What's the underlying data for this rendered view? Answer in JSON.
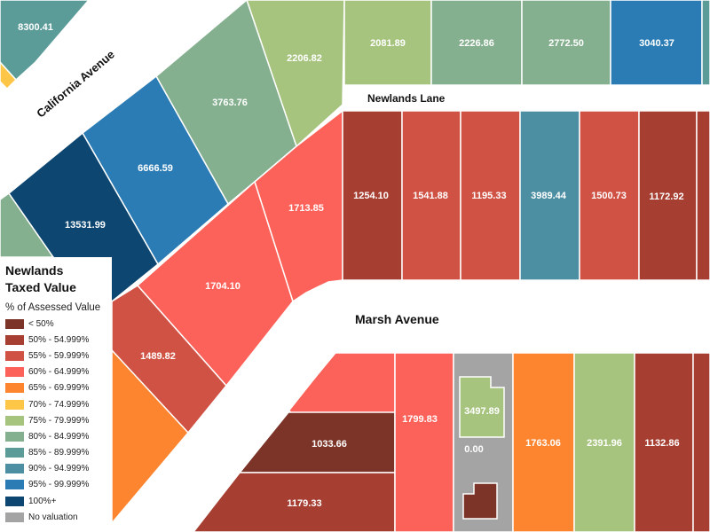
{
  "legend": {
    "title_line1": "Newlands",
    "title_line2": "Taxed Value",
    "subtitle": "% of Assessed Value",
    "items": [
      {
        "label": "< 50%",
        "color": "#7b3427"
      },
      {
        "label": "50% - 54.999%",
        "color": "#a63e32"
      },
      {
        "label": "55% - 59.999%",
        "color": "#d05245"
      },
      {
        "label": "60% - 64.999%",
        "color": "#fc6259"
      },
      {
        "label": "65% - 69.999%",
        "color": "#fd8530"
      },
      {
        "label": "70% - 74.999%",
        "color": "#fec646"
      },
      {
        "label": "75% - 79.999%",
        "color": "#a6c47e"
      },
      {
        "label": "80% - 84.999%",
        "color": "#85b08f"
      },
      {
        "label": "85% - 89.999%",
        "color": "#5b9c99"
      },
      {
        "label": "90% - 94.999%",
        "color": "#4c8fa2"
      },
      {
        "label": "95% - 99.999%",
        "color": "#2b7cb5"
      },
      {
        "label": "100%+",
        "color": "#0c4671"
      },
      {
        "label": "No valuation",
        "color": "#a4a4a4"
      }
    ]
  },
  "streets": {
    "california": "California Avenue",
    "newlands": "Newlands Lane",
    "marsh": "Marsh Avenue"
  },
  "parcels": [
    {
      "value": "8300.41"
    },
    {
      "value": "2206.82"
    },
    {
      "value": "2081.89"
    },
    {
      "value": "2226.86"
    },
    {
      "value": "2772.50"
    },
    {
      "value": "3040.37"
    },
    {
      "value": "3763.76"
    },
    {
      "value": "6666.59"
    },
    {
      "value": "13531.99"
    },
    {
      "value": "1713.85"
    },
    {
      "value": "1254.10"
    },
    {
      "value": "1541.88"
    },
    {
      "value": "1195.33"
    },
    {
      "value": "3989.44"
    },
    {
      "value": "1500.73"
    },
    {
      "value": "1172.92"
    },
    {
      "value": "1704.10"
    },
    {
      "value": "1489.82"
    },
    {
      "value": "1033.66"
    },
    {
      "value": "1799.83"
    },
    {
      "value": "3497.89"
    },
    {
      "value": "0.00"
    },
    {
      "value": "1763.06"
    },
    {
      "value": "2391.96"
    },
    {
      "value": "1132.86"
    },
    {
      "value": "1179.33"
    }
  ]
}
